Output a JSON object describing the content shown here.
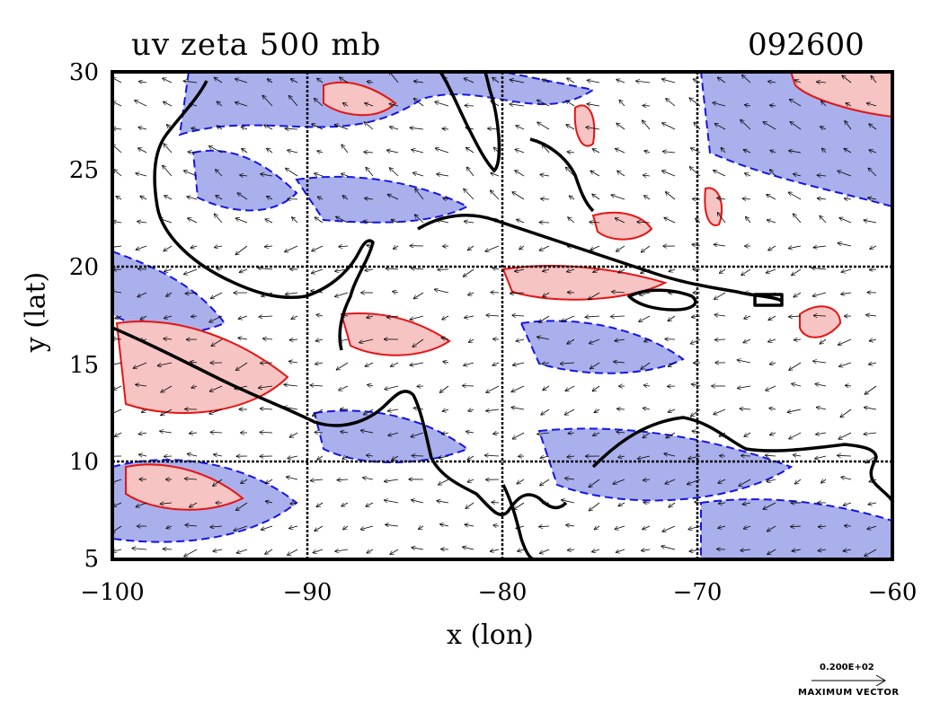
{
  "title": {
    "left": "uv zeta 500 mb",
    "right": "092600"
  },
  "axes": {
    "xlabel": "x (lon)",
    "ylabel": "y (lat)",
    "x_ticks": [
      "−100",
      "−90",
      "−80",
      "−70",
      "−60"
    ],
    "y_ticks": [
      "30",
      "25",
      "20",
      "15",
      "10",
      "5"
    ],
    "xlim": [
      -100,
      -60
    ],
    "ylim": [
      5,
      30
    ]
  },
  "legend": {
    "vector_value": "0.200E+02",
    "vector_label": "MAXIMUM VECTOR"
  },
  "colors": {
    "negative_fill": "#aab0ec",
    "negative_contour": "#1414e6",
    "positive_fill": "#f7c4c4",
    "positive_contour": "#e61414",
    "coast": "#000000"
  }
}
